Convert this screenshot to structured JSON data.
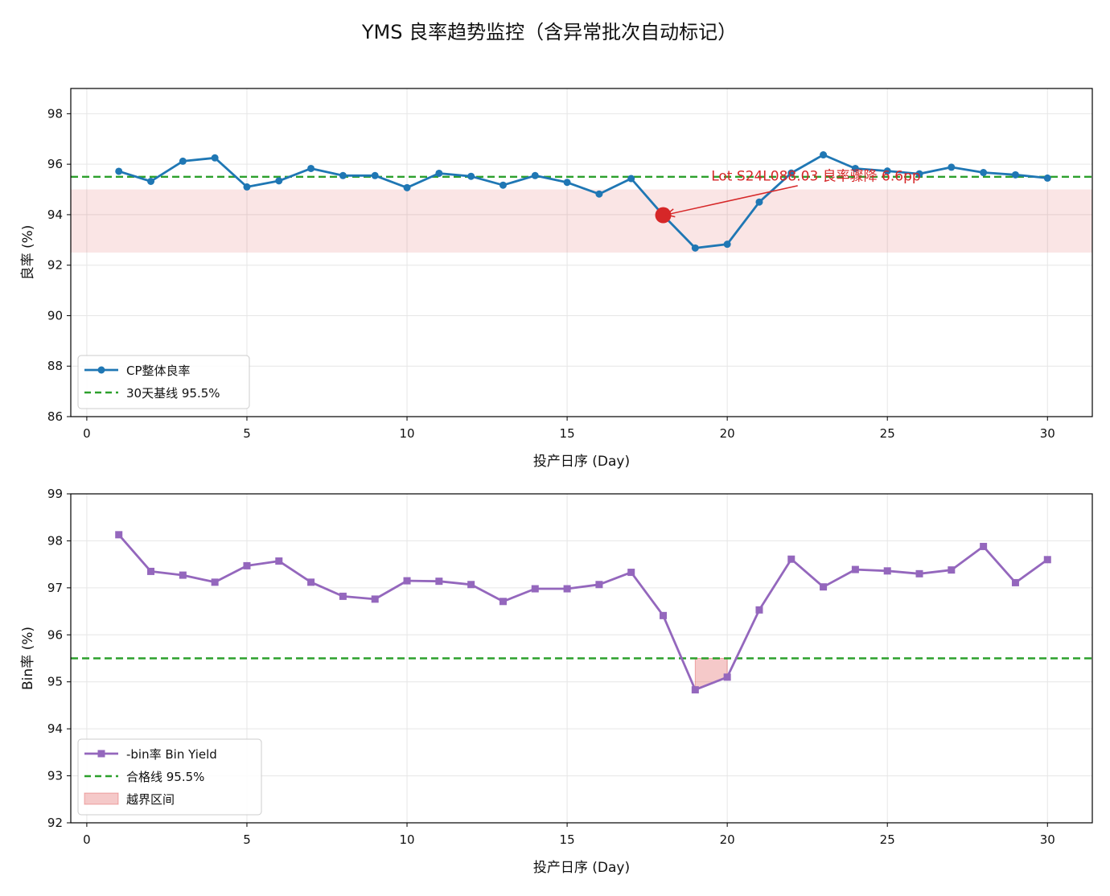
{
  "figure": {
    "title": "YMS 良率趋势监控（含异常批次自动标记）"
  },
  "chart_data": [
    {
      "type": "line",
      "xlabel": "投产日序 (Day)",
      "ylabel": "良率 (%)",
      "xlim": [
        -0.5,
        31.4
      ],
      "ylim": [
        86,
        99
      ],
      "x_ticks": [
        0,
        5,
        10,
        15,
        20,
        25,
        30
      ],
      "y_ticks": [
        86,
        88,
        90,
        92,
        94,
        96,
        98
      ],
      "grid": true,
      "legend_position": "lower-left",
      "x": [
        1,
        2,
        3,
        4,
        5,
        6,
        7,
        8,
        9,
        10,
        11,
        12,
        13,
        14,
        15,
        16,
        17,
        18,
        19,
        20,
        21,
        22,
        23,
        24,
        25,
        26,
        27,
        28,
        29,
        30
      ],
      "series": [
        {
          "name": "CP整体良率",
          "color": "#1f77b4",
          "marker": "circle",
          "values": [
            95.72,
            95.32,
            96.12,
            96.25,
            95.1,
            95.34,
            95.83,
            95.55,
            95.55,
            95.07,
            95.64,
            95.52,
            95.17,
            95.55,
            95.28,
            94.82,
            95.43,
            93.98,
            92.68,
            92.83,
            94.5,
            95.65,
            96.37,
            95.83,
            95.73,
            95.62,
            95.88,
            95.67,
            95.58,
            95.45
          ]
        }
      ],
      "reference_lines": [
        {
          "name": "30天基线 95.5%",
          "value": 95.5,
          "color": "#2ca02c",
          "style": "dashed"
        }
      ],
      "shaded_bands": [
        {
          "from": 92.5,
          "to": 95.0,
          "color": "#d62728",
          "opacity": 0.12
        }
      ],
      "highlight_point": {
        "x": 18,
        "y": 93.98,
        "color": "#d62728"
      },
      "annotation": {
        "text": "Lot S24L088.03 良率骤降 6.6pp",
        "x": 19.5,
        "y": 95.55,
        "arrow_from": [
          22.2,
          95.15
        ],
        "arrow_to": [
          18.1,
          94.0
        ],
        "color": "#d62728"
      }
    },
    {
      "type": "line",
      "xlabel": "投产日序 (Day)",
      "ylabel": "Bin率 (%)",
      "xlim": [
        -0.5,
        31.4
      ],
      "ylim": [
        92,
        99
      ],
      "x_ticks": [
        0,
        5,
        10,
        15,
        20,
        25,
        30
      ],
      "y_ticks": [
        92,
        93,
        94,
        95,
        96,
        97,
        98,
        99
      ],
      "grid": true,
      "legend_position": "lower-left",
      "x": [
        1,
        2,
        3,
        4,
        5,
        6,
        7,
        8,
        9,
        10,
        11,
        12,
        13,
        14,
        15,
        16,
        17,
        18,
        19,
        20,
        21,
        22,
        23,
        24,
        25,
        26,
        27,
        28,
        29,
        30
      ],
      "series": [
        {
          "name": "-bin率 Bin Yield",
          "color": "#9467bd",
          "marker": "square",
          "values": [
            98.13,
            97.35,
            97.27,
            97.12,
            97.47,
            97.57,
            97.12,
            96.82,
            96.76,
            97.15,
            97.14,
            97.07,
            96.71,
            96.98,
            96.98,
            97.07,
            97.33,
            96.41,
            94.83,
            95.1,
            96.53,
            97.61,
            97.02,
            97.39,
            97.36,
            97.3,
            97.38,
            97.88,
            97.11,
            97.6
          ]
        }
      ],
      "reference_lines": [
        {
          "name": "合格线 95.5%",
          "value": 95.5,
          "color": "#2ca02c",
          "style": "dashed"
        }
      ],
      "fill_regions": [
        {
          "name": "越界区间",
          "x_range": [
            19,
            20
          ],
          "color": "#d62728",
          "opacity": 0.25
        }
      ]
    }
  ]
}
